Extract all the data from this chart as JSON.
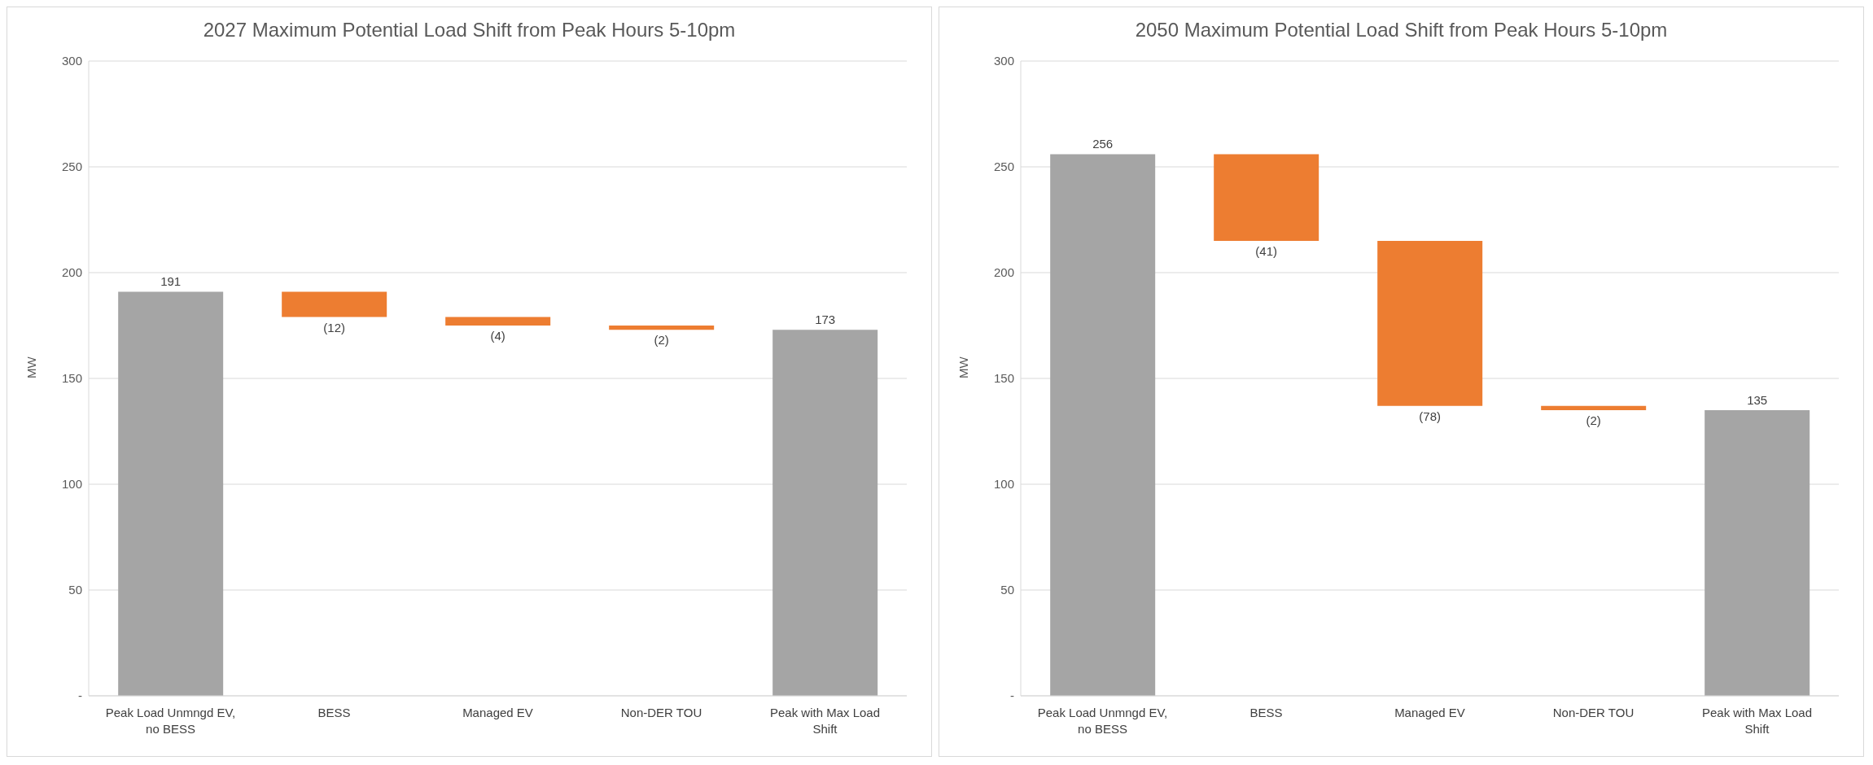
{
  "chart_data": [
    {
      "type": "bar",
      "title": "2027 Maximum Potential Load Shift from Peak Hours 5-10pm",
      "ylabel": "MW",
      "categories": [
        "Peak Load Unmngd EV, no BESS",
        "BESS",
        "Managed EV",
        "Non-DER TOU",
        "Peak with Max Load Shift"
      ],
      "values": [
        191,
        -12,
        -4,
        -2,
        173
      ],
      "base": [
        0,
        191,
        179,
        175,
        0
      ],
      "colors": [
        "#a5a5a5",
        "#ed7d31",
        "#ed7d31",
        "#ed7d31",
        "#a5a5a5"
      ],
      "value_labels": [
        "191",
        "(12)",
        "(4)",
        "(2)",
        "173"
      ],
      "ylim": [
        0,
        300
      ],
      "yticks": [
        {
          "value": 0,
          "label": "-"
        },
        50,
        100,
        150,
        200,
        250,
        300
      ],
      "grid": "y"
    },
    {
      "type": "bar",
      "title": "2050 Maximum Potential Load Shift from Peak Hours 5-10pm",
      "ylabel": "MW",
      "categories": [
        "Peak Load Unmngd EV, no BESS",
        "BESS",
        "Managed EV",
        "Non-DER TOU",
        "Peak with Max Load Shift"
      ],
      "values": [
        256,
        -41,
        -78,
        -2,
        135
      ],
      "base": [
        0,
        256,
        215,
        137,
        0
      ],
      "colors": [
        "#a5a5a5",
        "#ed7d31",
        "#ed7d31",
        "#ed7d31",
        "#a5a5a5"
      ],
      "value_labels": [
        "256",
        "(41)",
        "(78)",
        "(2)",
        "135"
      ],
      "ylim": [
        0,
        300
      ],
      "yticks": [
        {
          "value": 0,
          "label": "-"
        },
        50,
        100,
        150,
        200,
        250,
        300
      ],
      "grid": "y"
    }
  ]
}
